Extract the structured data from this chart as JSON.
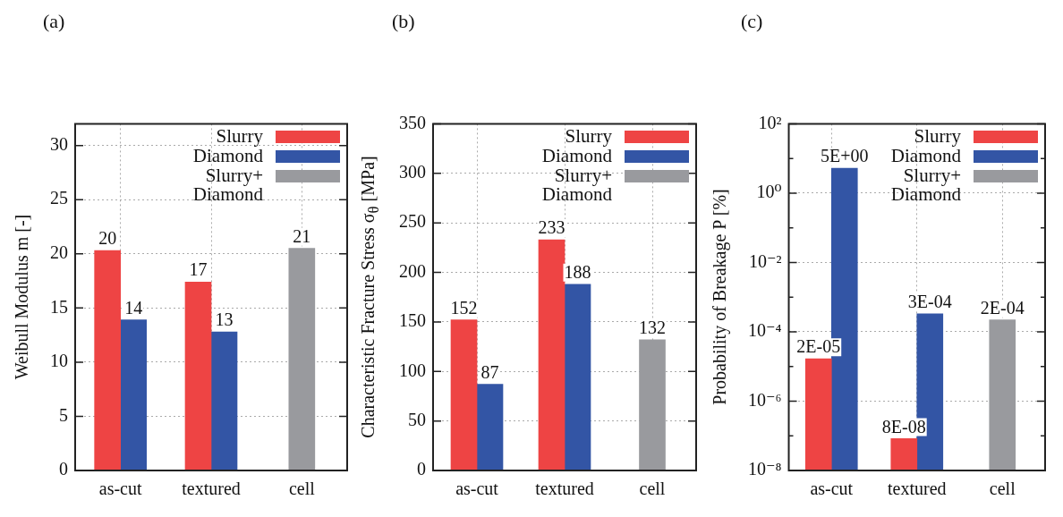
{
  "chart_data": [
    {
      "type": "bar",
      "title": "(a)",
      "ylabel": "Weibull Modulus m [-]",
      "categories": [
        "as-cut",
        "textured",
        "cell"
      ],
      "series": [
        {
          "name": "Slurry",
          "color": "#ee4444",
          "values": [
            20.3,
            17.4,
            null
          ],
          "value_labels": [
            "20",
            "17",
            null
          ]
        },
        {
          "name": "Diamond",
          "color": "#3355a5",
          "values": [
            13.9,
            12.8,
            null
          ],
          "value_labels": [
            "14",
            "13",
            null
          ]
        },
        {
          "name": "Slurry+ Diamond",
          "color": "#999a9e",
          "values": [
            null,
            null,
            20.5
          ],
          "value_labels": [
            null,
            null,
            "21"
          ]
        }
      ],
      "ylim": [
        0,
        32
      ],
      "yticks": [
        0,
        5,
        10,
        15,
        20,
        25,
        30
      ],
      "grid": true,
      "legend": "top right"
    },
    {
      "type": "bar",
      "title": "(b)",
      "ylabel": "Characteristic Fracture Stress σ$_{θ}$ [MPa]",
      "categories": [
        "as-cut",
        "textured",
        "cell"
      ],
      "series": [
        {
          "name": "Slurry",
          "color": "#ee4444",
          "values": [
            152,
            233,
            null
          ]
        },
        {
          "name": "Diamond",
          "color": "#3355a5",
          "values": [
            87,
            188,
            null
          ]
        },
        {
          "name": "Slurry+ Diamond",
          "color": "#999a9e",
          "values": [
            null,
            null,
            132
          ]
        }
      ],
      "ylim": [
        0,
        350
      ],
      "yticks": [
        0,
        50,
        100,
        150,
        200,
        250,
        300,
        350
      ],
      "grid": true,
      "legend": "top right",
      "data_labels": true
    },
    {
      "type": "bar",
      "title": "(c)",
      "ylabel": "Probability of Breakage P [%]",
      "categories": [
        "as-cut",
        "textured",
        "cell"
      ],
      "series": [
        {
          "name": "Slurry",
          "color": "#ee4444",
          "values": [
            1.66e-05,
            8.3e-08,
            null
          ],
          "value_labels": [
            "2E-05",
            "8E-08",
            null
          ]
        },
        {
          "name": "Diamond",
          "color": "#3355a5",
          "values": [
            5.2,
            0.00033,
            null
          ],
          "value_labels": [
            "5E+00",
            "3E-04",
            null
          ]
        },
        {
          "name": "Slurry+ Diamond",
          "color": "#999a9e",
          "values": [
            null,
            null,
            0.00022
          ],
          "value_labels": [
            null,
            null,
            "2E-04"
          ]
        }
      ],
      "ylim": [
        1e-08,
        100
      ],
      "yticks": [
        {
          "value": 1e-08,
          "label": "10⁻⁸"
        },
        {
          "value": 1e-07,
          "label": null
        },
        {
          "value": 1e-06,
          "label": "10⁻⁶"
        },
        {
          "value": 1e-05,
          "label": null
        },
        {
          "value": 0.0001,
          "label": "10⁻⁴"
        },
        {
          "value": 0.001,
          "label": null
        },
        {
          "value": 0.01,
          "label": "10⁻²"
        },
        {
          "value": 0.1,
          "label": null
        },
        {
          "value": 1,
          "label": "10⁰"
        },
        {
          "value": 10,
          "label": null
        },
        {
          "value": 100,
          "label": "10²"
        }
      ],
      "grid": true,
      "legend": "top right",
      "log": true
    }
  ]
}
